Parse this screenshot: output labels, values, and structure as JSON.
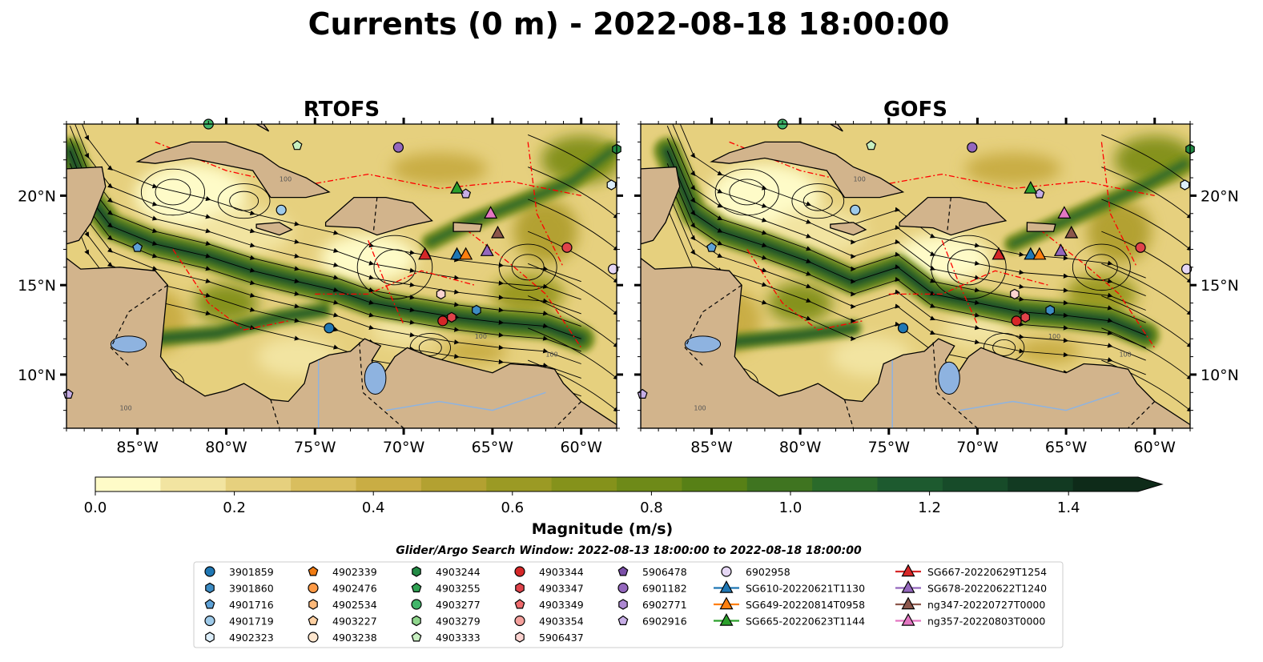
{
  "title": "Currents (0 m) - 2022-08-18 18:00:00",
  "chart_data": [
    {
      "type": "heatmap",
      "title": "RTOFS",
      "xlim": [
        -89,
        -58
      ],
      "ylim": [
        7,
        24
      ],
      "xticks": [
        -85,
        -80,
        -75,
        -70,
        -65,
        -60
      ],
      "yticks": [
        10,
        15,
        20
      ],
      "xtick_labels": [
        "85°W",
        "80°W",
        "75°W",
        "70°W",
        "65°W",
        "60°W"
      ],
      "ytick_labels": [
        "10°N",
        "15°N",
        "20°N"
      ],
      "ytick_side": "left",
      "contour_label": "100",
      "jet_path": [
        [
          -88.8,
          22.5
        ],
        [
          -87.8,
          20
        ],
        [
          -86.5,
          18.3
        ],
        [
          -84,
          17.3
        ],
        [
          -81,
          16.6
        ],
        [
          -78.5,
          15.8
        ],
        [
          -76,
          15.2
        ],
        [
          -73.8,
          14.7
        ],
        [
          -71.8,
          14
        ],
        [
          -69.5,
          13.6
        ],
        [
          -67,
          13.2
        ],
        [
          -64.5,
          12.9
        ],
        [
          -62,
          12.7
        ],
        [
          -60,
          12
        ]
      ],
      "jet_secondary": [
        [
          -84,
          12
        ],
        [
          -80.5,
          12.3
        ],
        [
          -77,
          13.2
        ],
        [
          -74.5,
          13.6
        ]
      ],
      "jet_north": [
        [
          -68.5,
          17.4
        ],
        [
          -66.5,
          18.4
        ],
        [
          -63.5,
          19.6
        ],
        [
          -60.5,
          20.8
        ],
        [
          -58.3,
          22.5
        ]
      ]
    },
    {
      "type": "heatmap",
      "title": "GOFS",
      "xlim": [
        -89,
        -58
      ],
      "ylim": [
        7,
        24
      ],
      "xticks": [
        -85,
        -80,
        -75,
        -70,
        -65,
        -60
      ],
      "yticks": [
        10,
        15,
        20
      ],
      "xtick_labels": [
        "85°W",
        "80°W",
        "75°W",
        "70°W",
        "65°W",
        "60°W"
      ],
      "ytick_labels": [
        "10°N",
        "15°N",
        "20°N"
      ],
      "ytick_side": "right",
      "contour_label": "100",
      "jet_path": [
        [
          -87.5,
          22.5
        ],
        [
          -86,
          19
        ],
        [
          -84.5,
          18
        ],
        [
          -82,
          17.2
        ],
        [
          -79.5,
          16.3
        ],
        [
          -77,
          15.2
        ],
        [
          -74.5,
          16
        ],
        [
          -72.5,
          14.5
        ],
        [
          -70,
          14
        ],
        [
          -67.5,
          13.5
        ],
        [
          -65,
          13.3
        ],
        [
          -62.5,
          13
        ],
        [
          -60.5,
          12.2
        ]
      ],
      "jet_secondary": [
        [
          -84,
          11.8
        ],
        [
          -80,
          12.2
        ],
        [
          -77,
          12.6
        ]
      ],
      "jet_north": [
        [
          -68,
          17.3
        ],
        [
          -66,
          18.2
        ],
        [
          -63,
          19.5
        ],
        [
          -60.5,
          20.6
        ],
        [
          -58.3,
          21.8
        ]
      ]
    }
  ],
  "colorbar": {
    "label": "Magnitude (m/s)",
    "min": 0.0,
    "max": 1.5,
    "step": 0.1,
    "extend": "max",
    "tick_values": [
      0.0,
      0.2,
      0.4,
      0.6,
      0.8,
      1.0,
      1.2,
      1.4
    ],
    "tick_labels": [
      "0.0",
      "0.2",
      "0.4",
      "0.6",
      "0.8",
      "1.0",
      "1.2",
      "1.4"
    ],
    "colors": [
      "#fefbc8",
      "#f2e4a1",
      "#e6d07e",
      "#d9be5e",
      "#c9ad44",
      "#b3a131",
      "#9b9a24",
      "#85921b",
      "#6e8a18",
      "#578016",
      "#3f7420",
      "#2a6a2a",
      "#1d5a2f",
      "#174b29",
      "#123a22",
      "#0e2b19"
    ],
    "over_color": "#0e2b19"
  },
  "search_window": "Glider/Argo Search Window: 2022-08-13 18:00:00 to 2022-08-18 18:00:00",
  "legend": {
    "columns": [
      [
        {
          "label": "3901859",
          "marker": "circle",
          "color": "#1f77b4"
        },
        {
          "label": "3901860",
          "marker": "hexagon",
          "color": "#3d8cc4"
        },
        {
          "label": "4901716",
          "marker": "pentagon",
          "color": "#5ea1d6"
        },
        {
          "label": "4901719",
          "marker": "circle",
          "color": "#9ecae9"
        },
        {
          "label": "4902323",
          "marker": "hexagon",
          "color": "#dceefa"
        }
      ],
      [
        {
          "label": "4902339",
          "marker": "pentagon",
          "color": "#f07b12"
        },
        {
          "label": "4902476",
          "marker": "circle",
          "color": "#fd9a46"
        },
        {
          "label": "4902534",
          "marker": "hexagon",
          "color": "#fdb97a"
        },
        {
          "label": "4903227",
          "marker": "pentagon",
          "color": "#fdd0a2"
        },
        {
          "label": "4903238",
          "marker": "circle",
          "color": "#fee6ce"
        }
      ],
      [
        {
          "label": "4903244",
          "marker": "hexagon",
          "color": "#238b45"
        },
        {
          "label": "4903255",
          "marker": "pentagon",
          "color": "#31a354"
        },
        {
          "label": "4903277",
          "marker": "circle",
          "color": "#41b66a"
        },
        {
          "label": "4903279",
          "marker": "hexagon",
          "color": "#8fd68c"
        },
        {
          "label": "4903333",
          "marker": "pentagon",
          "color": "#c7efc0"
        }
      ],
      [
        {
          "label": "4903344",
          "marker": "circle",
          "color": "#d62728"
        },
        {
          "label": "4903347",
          "marker": "hexagon",
          "color": "#e0434a"
        },
        {
          "label": "4903349",
          "marker": "pentagon",
          "color": "#ef6b6d"
        },
        {
          "label": "4903354",
          "marker": "circle",
          "color": "#f4a09c"
        },
        {
          "label": "5906437",
          "marker": "hexagon",
          "color": "#fcd3d0"
        }
      ],
      [
        {
          "label": "5906478",
          "marker": "pentagon",
          "color": "#7b4fa8"
        },
        {
          "label": "6901182",
          "marker": "circle",
          "color": "#9467bd"
        },
        {
          "label": "6902771",
          "marker": "hexagon",
          "color": "#ad88d2"
        },
        {
          "label": "6902916",
          "marker": "pentagon",
          "color": "#c7aee6"
        },
        {}
      ],
      [
        {
          "label": "6902958",
          "marker": "circle",
          "color": "#e6d7f5"
        },
        {
          "label": "SG610-20220621T1130",
          "marker": "triangle",
          "color": "#1f77b4",
          "line": true
        },
        {
          "label": "SG649-20220814T0958",
          "marker": "triangle",
          "color": "#ff7f0e",
          "line": true
        },
        {
          "label": "SG665-20220623T1144",
          "marker": "triangle",
          "color": "#2ca02c",
          "line": true
        },
        {}
      ],
      [
        {
          "label": "SG667-20220629T1254",
          "marker": "triangle",
          "color": "#d62728",
          "line": true
        },
        {
          "label": "SG678-20220622T1240",
          "marker": "triangle",
          "color": "#9467bd",
          "line": true
        },
        {
          "label": "ng347-20220727T0000",
          "marker": "triangle",
          "color": "#8c564b",
          "line": true
        },
        {
          "label": "ng357-20220803T0000",
          "marker": "triangle",
          "color": "#e377c2",
          "line": true
        },
        {}
      ]
    ]
  },
  "observations": [
    {
      "lon": -74.2,
      "lat": 12.6,
      "marker": "circle",
      "color": "#1f77b4"
    },
    {
      "lon": -65.9,
      "lat": 13.6,
      "marker": "hexagon",
      "color": "#3d8cc4"
    },
    {
      "lon": -85,
      "lat": 17.1,
      "marker": "pentagon",
      "color": "#5ea1d6"
    },
    {
      "lon": -76.9,
      "lat": 19.2,
      "marker": "circle",
      "color": "#9ecae9"
    },
    {
      "lon": -58.3,
      "lat": 20.6,
      "marker": "hexagon",
      "color": "#dceefa"
    },
    {
      "lon": -81,
      "lat": 24,
      "marker": "circle",
      "color": "#41b66a"
    },
    {
      "lon": -58,
      "lat": 22.6,
      "marker": "hexagon",
      "color": "#238b45"
    },
    {
      "lon": -76,
      "lat": 22.8,
      "marker": "pentagon",
      "color": "#c7efc0"
    },
    {
      "lon": -70.3,
      "lat": 22.7,
      "marker": "circle",
      "color": "#9467bd"
    },
    {
      "lon": -66.5,
      "lat": 20.1,
      "marker": "pentagon",
      "color": "#c7aee6"
    },
    {
      "lon": -67.8,
      "lat": 13.0,
      "marker": "circle",
      "color": "#d62728"
    },
    {
      "lon": -67.3,
      "lat": 13.2,
      "marker": "hexagon",
      "color": "#e0434a"
    },
    {
      "lon": -67.9,
      "lat": 14.5,
      "marker": "hexagon",
      "color": "#fcd3d0"
    },
    {
      "lon": -60.8,
      "lat": 17.1,
      "marker": "circle",
      "color": "#e0434a"
    },
    {
      "lon": -58.2,
      "lat": 15.9,
      "marker": "circle",
      "color": "#e6d7f5"
    },
    {
      "lon": -88.9,
      "lat": 8.9,
      "marker": "pentagon",
      "color": "#c7aee6"
    },
    {
      "lon": -68.8,
      "lat": 16.7,
      "marker": "triangle",
      "color": "#d62728"
    },
    {
      "lon": -67,
      "lat": 16.7,
      "marker": "triangle",
      "color": "#1f77b4"
    },
    {
      "lon": -66.5,
      "lat": 16.7,
      "marker": "triangle",
      "color": "#ff7f0e"
    },
    {
      "lon": -67,
      "lat": 20.4,
      "marker": "triangle",
      "color": "#2ca02c"
    },
    {
      "lon": -65.3,
      "lat": 16.9,
      "marker": "triangle",
      "color": "#9467bd"
    },
    {
      "lon": -64.7,
      "lat": 17.9,
      "marker": "triangle",
      "color": "#8c564b"
    },
    {
      "lon": -65.1,
      "lat": 19.0,
      "marker": "triangle",
      "color": "#e377c2"
    }
  ]
}
